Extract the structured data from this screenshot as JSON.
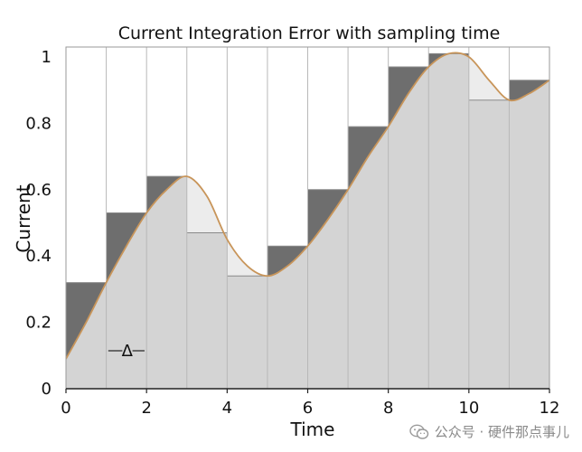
{
  "chart_data": {
    "type": "area",
    "title": "Current Integration Error with sampling time",
    "xlabel": "Time",
    "ylabel": "Current",
    "xlim": [
      0,
      12
    ],
    "ylim": [
      0,
      1.03
    ],
    "x_ticks": [
      "0",
      "2",
      "4",
      "6",
      "8",
      "10",
      "12"
    ],
    "y_ticks": [
      "0",
      "0.2",
      "0.4",
      "0.6",
      "0.8",
      "1"
    ],
    "step_width": 1,
    "annotation": "Δ",
    "samples": [
      {
        "x0": 0,
        "x1": 1,
        "value": 0.32
      },
      {
        "x0": 1,
        "x1": 2,
        "value": 0.53
      },
      {
        "x0": 2,
        "x1": 3,
        "value": 0.64
      },
      {
        "x0": 3,
        "x1": 4,
        "value": 0.47
      },
      {
        "x0": 4,
        "x1": 5,
        "value": 0.34
      },
      {
        "x0": 5,
        "x1": 6,
        "value": 0.43
      },
      {
        "x0": 6,
        "x1": 7,
        "value": 0.6
      },
      {
        "x0": 7,
        "x1": 8,
        "value": 0.79
      },
      {
        "x0": 8,
        "x1": 9,
        "value": 0.97
      },
      {
        "x0": 9,
        "x1": 10,
        "value": 1.01
      },
      {
        "x0": 10,
        "x1": 11,
        "value": 0.87
      },
      {
        "x0": 11,
        "x1": 12,
        "value": 0.93
      }
    ],
    "curve": {
      "x": [
        0,
        0.5,
        1,
        1.5,
        2,
        2.5,
        3,
        3.5,
        4,
        4.5,
        5,
        5.5,
        6,
        6.5,
        7,
        7.5,
        8,
        8.5,
        9,
        9.5,
        10,
        10.5,
        11,
        11.5,
        12
      ],
      "y": [
        0.09,
        0.2,
        0.32,
        0.43,
        0.53,
        0.6,
        0.64,
        0.58,
        0.45,
        0.37,
        0.34,
        0.37,
        0.43,
        0.51,
        0.6,
        0.7,
        0.79,
        0.89,
        0.97,
        1.01,
        1.0,
        0.93,
        0.87,
        0.89,
        0.93
      ]
    },
    "colors": {
      "area": "#d4d4d4",
      "error_dark": "#6e6e6e",
      "error_light": "#ececec",
      "curve": "#c8955a",
      "divider": "#b8b8b8",
      "grid": "#cfcfcf"
    }
  },
  "watermark": {
    "text": "公众号 · 硬件那点事儿",
    "icon": "wechat-icon"
  }
}
